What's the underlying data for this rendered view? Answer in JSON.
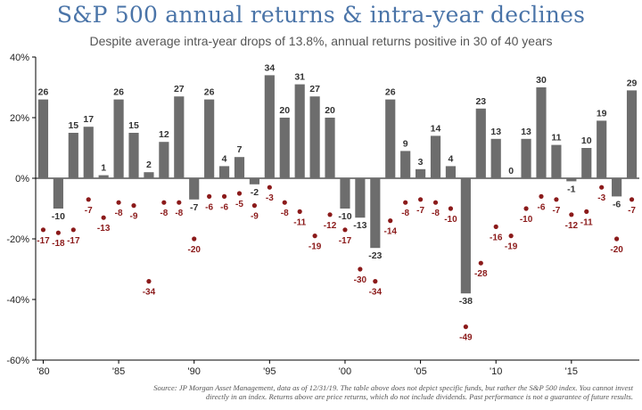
{
  "header": {
    "title": "S&P 500 annual returns & intra-year declines",
    "subtitle": "Despite average intra-year drops of 13.8%, annual returns positive in 30 of 40 years"
  },
  "footer": {
    "source": "Source: JP Morgan Asset Management, data as of 12/31/19. The table above does not depict specific funds, but rather the S&P 500 index. You cannot invest directly in an index. Returns above are price returns, which do not include dividends. Past performance is not a guarantee of future results."
  },
  "colors": {
    "bar": "#6d6d6d",
    "decline": "#8b1a1a",
    "axis": "#000000",
    "label": "#333333"
  },
  "chart_data": {
    "type": "bar",
    "title": "S&P 500 annual returns & intra-year declines",
    "x": [
      1980,
      1981,
      1982,
      1983,
      1984,
      1985,
      1986,
      1987,
      1988,
      1989,
      1990,
      1991,
      1992,
      1993,
      1994,
      1995,
      1996,
      1997,
      1998,
      1999,
      2000,
      2001,
      2002,
      2003,
      2004,
      2005,
      2006,
      2007,
      2008,
      2009,
      2010,
      2011,
      2012,
      2013,
      2014,
      2015,
      2016,
      2017,
      2018,
      2019
    ],
    "series": [
      {
        "kind": "bar",
        "values": [
          26,
          -10,
          15,
          17,
          1,
          26,
          15,
          2,
          12,
          27,
          -7,
          26,
          4,
          7,
          -2,
          34,
          20,
          31,
          27,
          20,
          -10,
          -13,
          -23,
          26,
          9,
          3,
          14,
          4,
          -38,
          23,
          13,
          0,
          13,
          30,
          11,
          -1,
          10,
          19,
          -6,
          29
        ],
        "labels": [
          "26",
          "-10",
          "15",
          "17",
          "1",
          "26",
          "15",
          "2",
          "12",
          "27",
          "-7",
          "26",
          "4",
          "7",
          "-2",
          "34",
          "20",
          "31",
          "27",
          "20",
          "-10",
          "-13",
          "-23",
          "26",
          "9",
          "3",
          "14",
          "4",
          "-38",
          "23",
          "13",
          "0",
          "13",
          "30",
          "11",
          "-1",
          "10",
          "19",
          "-6",
          "29"
        ]
      },
      {
        "kind": "scatter",
        "values": [
          -17,
          -18,
          -17,
          -7,
          -13,
          -8,
          -9,
          -34,
          -8,
          -8,
          -20,
          -6,
          -6,
          -5,
          -9,
          -3,
          -8,
          -11,
          -19,
          -12,
          -17,
          -30,
          -34,
          -14,
          -8,
          -7,
          -8,
          -10,
          -49,
          -28,
          -16,
          -19,
          -10,
          -6,
          -7,
          -12,
          -11,
          -3,
          -20,
          -7
        ],
        "labels": [
          "-17",
          "-18",
          "-17",
          "-7",
          "-13",
          "-8",
          "-9",
          "-34",
          "-8",
          "-8",
          "-20",
          "-6",
          "-6",
          "-5",
          "-9",
          "-3",
          "-8",
          "-11",
          "-19",
          "-12",
          "-17",
          "-30",
          "-34",
          "-14",
          "-8",
          "-7",
          "-8",
          "-10",
          "-49",
          "-28",
          "-16",
          "-19",
          "-10",
          "-6",
          "-7",
          "-12",
          "-11",
          "-3",
          "-20",
          "-7"
        ]
      }
    ],
    "y_ticks": [
      40,
      20,
      0,
      -20,
      -40,
      -60
    ],
    "y_tick_labels": [
      "40%",
      "20%",
      "0%",
      "-20%",
      "-40%",
      "-60%"
    ],
    "x_ticks": [
      1980,
      1985,
      1990,
      1995,
      2000,
      2005,
      2010,
      2015
    ],
    "x_tick_labels": [
      "'80",
      "'85",
      "'90",
      "'95",
      "'00",
      "'05",
      "'10",
      "'15"
    ],
    "ylim": [
      -60,
      40
    ],
    "grid": false
  }
}
